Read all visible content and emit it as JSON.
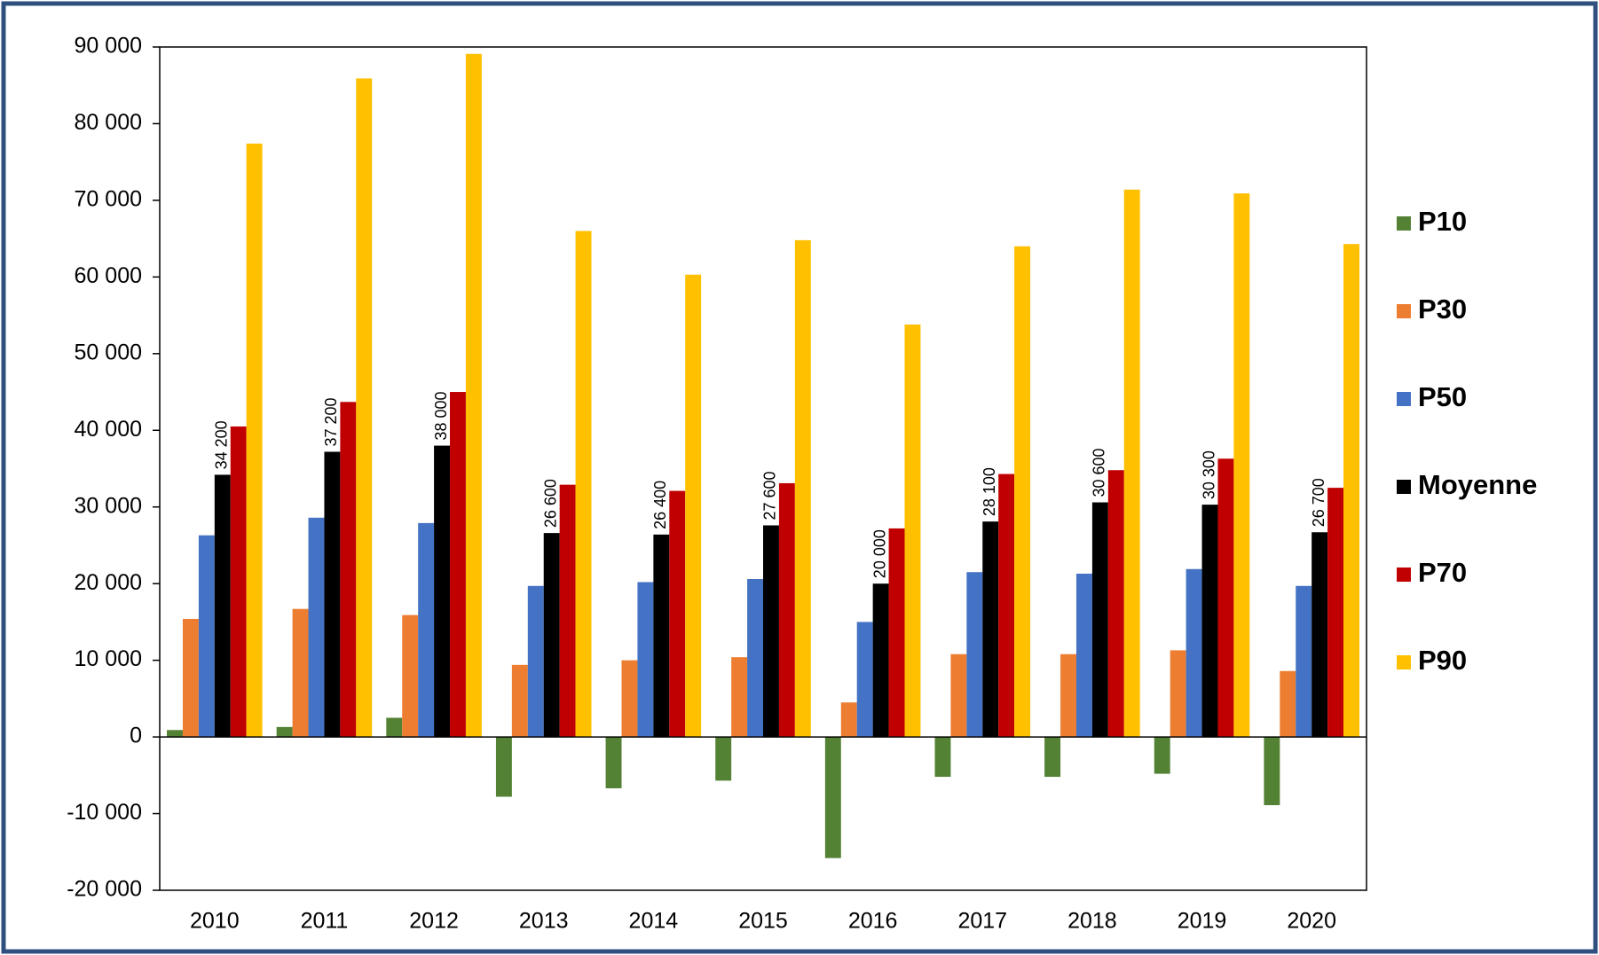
{
  "chart_data": {
    "type": "bar",
    "categories": [
      "2010",
      "2011",
      "2012",
      "2013",
      "2014",
      "2015",
      "2016",
      "2017",
      "2018",
      "2019",
      "2020"
    ],
    "series": [
      {
        "name": "P10",
        "color": "#548235",
        "values": [
          900,
          1300,
          2500,
          -7800,
          -6700,
          -5700,
          -15800,
          -5200,
          -5200,
          -4800,
          -8900
        ]
      },
      {
        "name": "P30",
        "color": "#ed7d31",
        "values": [
          15400,
          16700,
          15900,
          9400,
          10000,
          10400,
          4500,
          10800,
          10800,
          11300,
          8600
        ]
      },
      {
        "name": "P50",
        "color": "#4472c4",
        "values": [
          26300,
          28600,
          27900,
          19700,
          20200,
          20600,
          15000,
          21500,
          21300,
          21900,
          19700
        ]
      },
      {
        "name": "Moyenne",
        "color": "#000000",
        "values": [
          34200,
          37200,
          38000,
          26600,
          26400,
          27600,
          20000,
          28100,
          30600,
          30300,
          26700
        ],
        "value_labels": [
          "34 200",
          "37 200",
          "38 000",
          "26 600",
          "26 400",
          "27 600",
          "20 000",
          "28 100",
          "30 600",
          "30 300",
          "26 700"
        ]
      },
      {
        "name": "P70",
        "color": "#c00000",
        "values": [
          40500,
          43700,
          45000,
          32900,
          32100,
          33100,
          27200,
          34300,
          34800,
          36300,
          32500
        ]
      },
      {
        "name": "P90",
        "color": "#ffc000",
        "values": [
          77400,
          85900,
          89100,
          66000,
          60300,
          64800,
          53800,
          64000,
          71400,
          70900,
          64300
        ]
      }
    ],
    "ylim": [
      -20000,
      90000
    ],
    "yticks": [
      {
        "value": -20000,
        "label": "-20 000"
      },
      {
        "value": -10000,
        "label": "-10 000"
      },
      0,
      {
        "value": 10000,
        "label": "10 000"
      },
      {
        "value": 20000,
        "label": "20 000"
      },
      {
        "value": 30000,
        "label": "30 000"
      },
      {
        "value": 40000,
        "label": "40 000"
      },
      {
        "value": 50000,
        "label": "50 000"
      },
      {
        "value": 60000,
        "label": "60 000"
      },
      {
        "value": 70000,
        "label": "70 000"
      },
      {
        "value": 80000,
        "label": "80 000"
      },
      {
        "value": 90000,
        "label": "90 000"
      }
    ],
    "legend": "right"
  }
}
